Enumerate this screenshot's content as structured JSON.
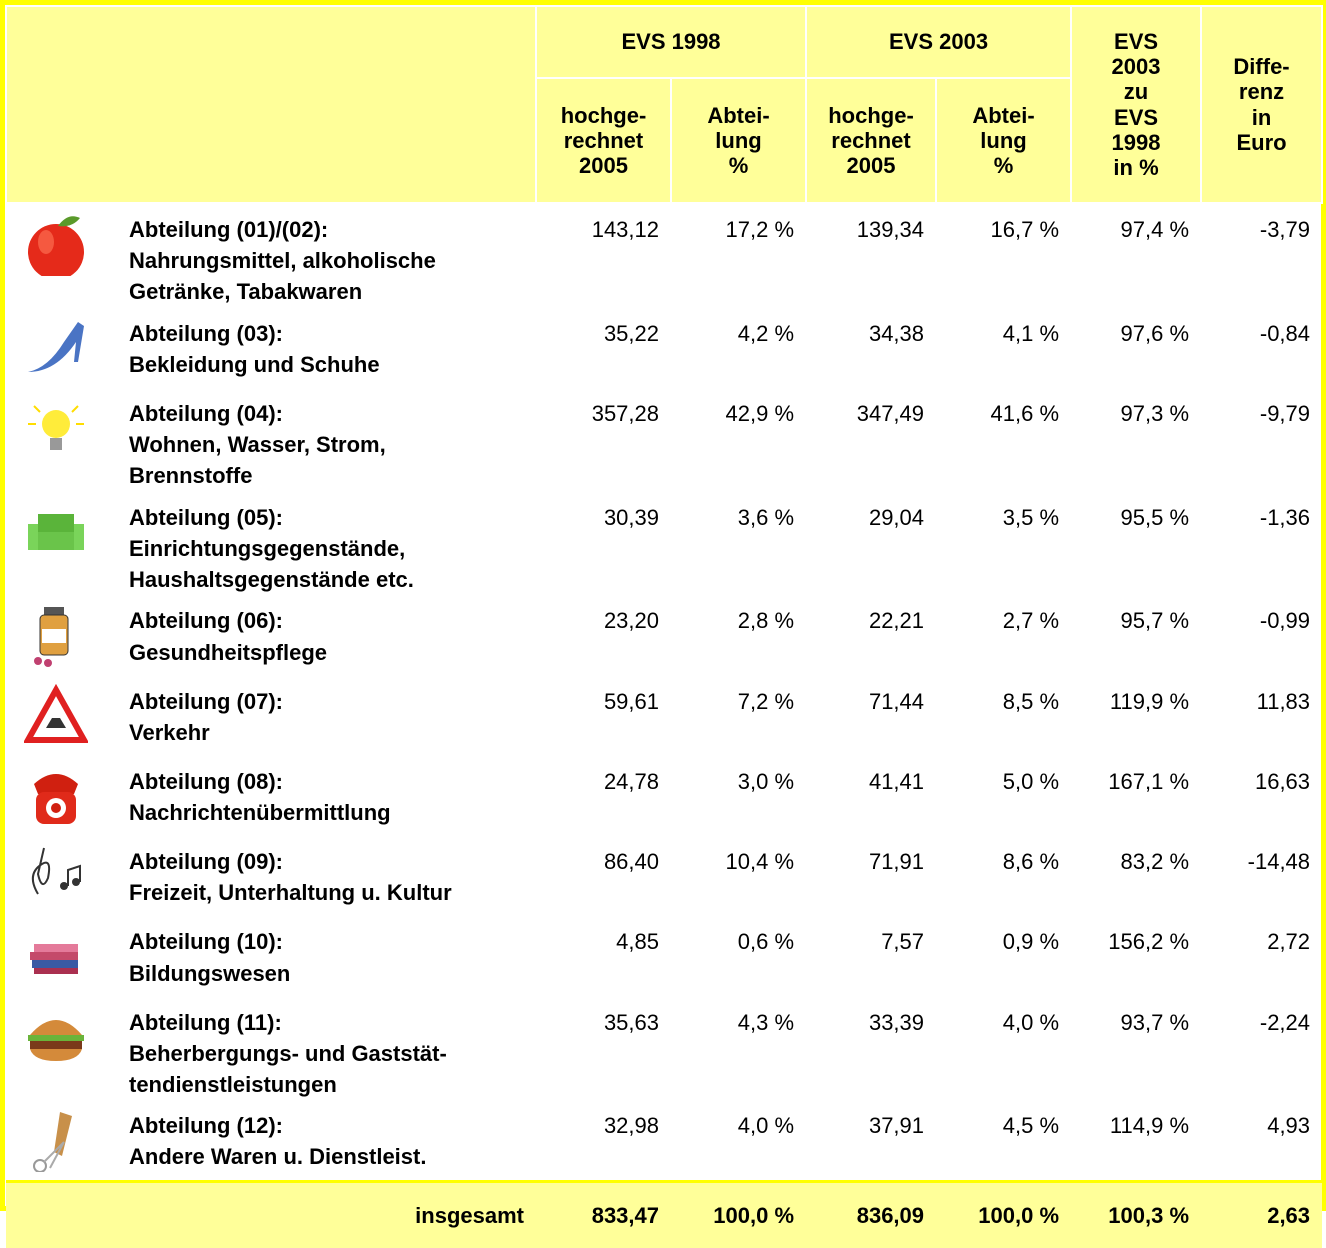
{
  "table": {
    "header": {
      "groups": [
        "EVS 1998",
        "EVS 2003"
      ],
      "sub": [
        [
          "hochge-",
          "rechnet",
          "2005"
        ],
        [
          "Abtei-",
          "lung",
          "%"
        ],
        [
          "hochge-",
          "rechnet",
          "2005"
        ],
        [
          "Abtei-",
          "lung",
          "%"
        ]
      ],
      "ratio": [
        "EVS",
        "2003",
        "zu",
        "EVS",
        "1998",
        "in %"
      ],
      "diff": [
        "Diffe-",
        "renz",
        "in",
        "Euro"
      ]
    },
    "rows": [
      {
        "lines": [
          "Abteilung (01)/(02):",
          "Nahrungsmittel, alkoholische",
          "Getränke, Tabakwaren"
        ],
        "cells": [
          "143,12",
          "17,2 %",
          "139,34",
          "16,7 %",
          "97,4 %",
          "-3,79"
        ]
      },
      {
        "lines": [
          "Abteilung (03):",
          "Bekleidung und Schuhe"
        ],
        "cells": [
          "35,22",
          "4,2 %",
          "34,38",
          "4,1 %",
          "97,6 %",
          "-0,84"
        ]
      },
      {
        "lines": [
          "Abteilung (04):",
          "Wohnen, Wasser, Strom,",
          "Brennstoffe"
        ],
        "cells": [
          "357,28",
          "42,9 %",
          "347,49",
          "41,6 %",
          "97,3 %",
          "-9,79"
        ]
      },
      {
        "lines": [
          "Abteilung (05):",
          "Einrichtungsgegenstände,",
          "Haushaltsgegenstände etc."
        ],
        "cells": [
          "30,39",
          "3,6 %",
          "29,04",
          "3,5 %",
          "95,5 %",
          "-1,36"
        ]
      },
      {
        "lines": [
          "Abteilung (06):",
          "Gesundheitspflege"
        ],
        "cells": [
          "23,20",
          "2,8 %",
          "22,21",
          "2,7 %",
          "95,7 %",
          "-0,99"
        ]
      },
      {
        "lines": [
          "Abteilung (07):",
          "Verkehr"
        ],
        "cells": [
          "59,61",
          "7,2 %",
          "71,44",
          "8,5 %",
          "119,9 %",
          "11,83"
        ]
      },
      {
        "lines": [
          "Abteilung (08):",
          "Nachrichtenübermittlung"
        ],
        "cells": [
          "24,78",
          "3,0 %",
          "41,41",
          "5,0 %",
          "167,1 %",
          "16,63"
        ]
      },
      {
        "lines": [
          "Abteilung (09):",
          "Freizeit, Unterhaltung u. Kultur"
        ],
        "cells": [
          "86,40",
          "10,4 %",
          "71,91",
          "8,6 %",
          "83,2 %",
          "-14,48"
        ]
      },
      {
        "lines": [
          "Abteilung (10):",
          "Bildungswesen"
        ],
        "cells": [
          "4,85",
          "0,6 %",
          "7,57",
          "0,9 %",
          "156,2 %",
          "2,72"
        ]
      },
      {
        "lines": [
          "Abteilung (11):",
          "Beherbergungs- und Gaststät-",
          "tendienstleistungen"
        ],
        "cells": [
          "35,63",
          "4,3 %",
          "33,39",
          "4,0 %",
          "93,7 %",
          "-2,24"
        ]
      },
      {
        "lines": [
          "Abteilung (12):",
          "Andere Waren u. Dienstleist."
        ],
        "cells": [
          "32,98",
          "4,0 %",
          "37,91",
          "4,5 %",
          "114,9 %",
          "4,93"
        ]
      }
    ],
    "footer": {
      "label": "insgesamt",
      "cells": [
        "833,47",
        "100,0 %",
        "836,09",
        "100,0 %",
        "100,3 %",
        "2,63"
      ]
    }
  }
}
